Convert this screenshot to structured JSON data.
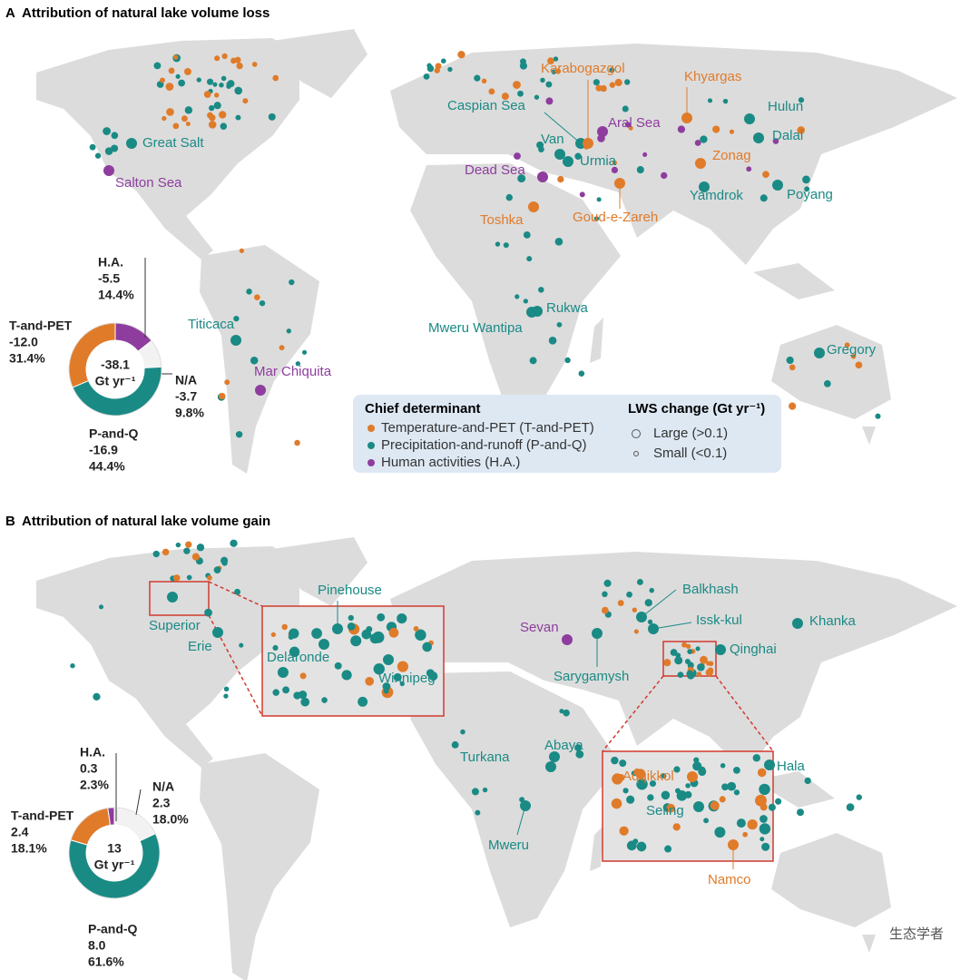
{
  "panels": [
    {
      "letter": "A",
      "title": "Attribution of natural lake volume loss",
      "donut": {
        "type": "pie",
        "total": -38.1,
        "unit": "Gt yr⁻¹",
        "categories": [
          "H.A.",
          "N/A",
          "P-and-Q",
          "T-and-PET"
        ],
        "values": [
          -5.5,
          -3.7,
          -16.9,
          -12.0
        ],
        "value_labels": [
          "-5.5",
          "-3.7",
          "-16.9",
          "-12.0"
        ],
        "percents": [
          14.4,
          9.8,
          44.4,
          31.4
        ],
        "percent_labels": [
          "14.4%",
          "9.8%",
          "44.4%",
          "31.4%"
        ],
        "colors": [
          "#8e3d9e",
          "#f2f2f2",
          "#1a8a85",
          "#e07b2a"
        ]
      },
      "lakes": [
        {
          "name": "Great Salt",
          "color": "#1a8a85"
        },
        {
          "name": "Salton Sea",
          "color": "#8e3d9e"
        },
        {
          "name": "Titicaca",
          "color": "#1a8a85"
        },
        {
          "name": "Mar Chiquita",
          "color": "#8e3d9e"
        },
        {
          "name": "Caspian Sea",
          "color": "#1a8a85"
        },
        {
          "name": "Karabogazgol",
          "color": "#e07b2a"
        },
        {
          "name": "Aral Sea",
          "color": "#8e3d9e"
        },
        {
          "name": "Van",
          "color": "#1a8a85"
        },
        {
          "name": "Urmia",
          "color": "#1a8a85"
        },
        {
          "name": "Dead Sea",
          "color": "#8e3d9e"
        },
        {
          "name": "Toshka",
          "color": "#e07b2a"
        },
        {
          "name": "Goud-e-Zareh",
          "color": "#e07b2a"
        },
        {
          "name": "Khyargas",
          "color": "#e07b2a"
        },
        {
          "name": "Hulun",
          "color": "#1a8a85"
        },
        {
          "name": "Dalai",
          "color": "#1a8a85"
        },
        {
          "name": "Zonag",
          "color": "#e07b2a"
        },
        {
          "name": "Yamdrok",
          "color": "#1a8a85"
        },
        {
          "name": "Poyang",
          "color": "#1a8a85"
        },
        {
          "name": "Rukwa",
          "color": "#1a8a85"
        },
        {
          "name": "Mweru Wantipa",
          "color": "#1a8a85"
        },
        {
          "name": "Gregory",
          "color": "#1a8a85"
        }
      ]
    },
    {
      "letter": "B",
      "title": "Attribution of natural lake volume gain",
      "donut": {
        "type": "pie",
        "total": 13.0,
        "unit": "Gt yr⁻¹",
        "categories": [
          "N/A",
          "P-and-Q",
          "T-and-PET",
          "H.A."
        ],
        "values": [
          2.3,
          8.0,
          2.4,
          0.3
        ],
        "value_labels": [
          "2.3",
          "8.0",
          "2.4",
          "0.3"
        ],
        "percents": [
          18.0,
          61.6,
          18.1,
          2.3
        ],
        "percent_labels": [
          "18.0%",
          "61.6%",
          "18.1%",
          "2.3%"
        ],
        "colors": [
          "#f2f2f2",
          "#1a8a85",
          "#e07b2a",
          "#8e3d9e"
        ]
      },
      "lakes": [
        {
          "name": "Superior",
          "color": "#1a8a85"
        },
        {
          "name": "Erie",
          "color": "#1a8a85"
        },
        {
          "name": "Pinehouse",
          "color": "#1a8a85"
        },
        {
          "name": "Delaronde",
          "color": "#1a8a85"
        },
        {
          "name": "Winnipeg",
          "color": "#1a8a85"
        },
        {
          "name": "Balkhash",
          "color": "#1a8a85"
        },
        {
          "name": "Issk-kul",
          "color": "#1a8a85"
        },
        {
          "name": "Sevan",
          "color": "#8e3d9e"
        },
        {
          "name": "Sarygamysh",
          "color": "#1a8a85"
        },
        {
          "name": "Khanka",
          "color": "#1a8a85"
        },
        {
          "name": "Qinghai",
          "color": "#1a8a85"
        },
        {
          "name": "Turkana",
          "color": "#1a8a85"
        },
        {
          "name": "Abaya",
          "color": "#1a8a85"
        },
        {
          "name": "Mweru",
          "color": "#1a8a85"
        },
        {
          "name": "Hala",
          "color": "#1a8a85"
        },
        {
          "name": "Aqqikkol",
          "color": "#e07b2a"
        },
        {
          "name": "Seling",
          "color": "#1a8a85"
        },
        {
          "name": "Namco",
          "color": "#e07b2a"
        }
      ]
    }
  ],
  "legend": {
    "title": "Chief determinant",
    "items": [
      {
        "label": "Temperature-and-PET (T-and-PET)",
        "color": "#e07b2a"
      },
      {
        "label": "Precipitation-and-runoff (P-and-Q)",
        "color": "#1a8a85"
      },
      {
        "label": "Human activities (H.A.)",
        "color": "#8e3d9e"
      }
    ],
    "size_title": "LWS change (Gt yr⁻¹)",
    "sizes": [
      "Large (>0.1)",
      "Small (<0.1)"
    ]
  },
  "watermark": "生态学者"
}
